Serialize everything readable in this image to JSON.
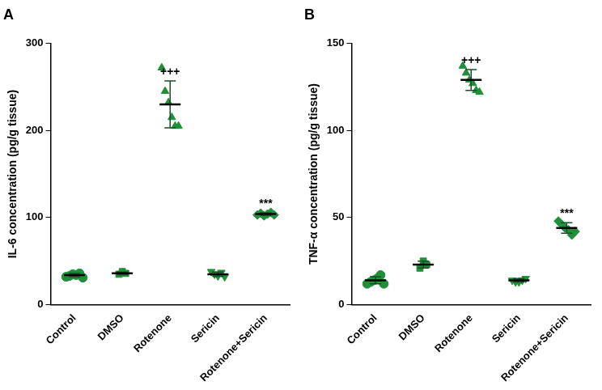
{
  "chart_data": [
    {
      "type": "scatter",
      "title": "A",
      "y_label": "IL-6 concentration (pg/g tissue)",
      "categories": [
        "Control",
        "DMSO",
        "Rotenone",
        "Sericin",
        "Rotenone+Sericin"
      ],
      "values": [
        [
          32,
          33,
          35,
          34,
          36,
          31
        ],
        [
          35,
          38,
          36
        ],
        [
          272,
          245,
          232,
          215,
          205,
          205
        ],
        [
          38,
          35,
          33,
          37,
          32
        ],
        [
          103,
          105,
          102,
          104,
          106,
          103
        ]
      ],
      "mean": [
        34,
        36,
        230,
        35,
        104
      ],
      "error": [
        2,
        1.5,
        27,
        2.5,
        1.5
      ],
      "marker": [
        "circle",
        "square",
        "triangle",
        "triangle-down",
        "diamond"
      ],
      "color": "#1f8f3a",
      "annotations": [
        {
          "category": "Rotenone",
          "text": "+++"
        },
        {
          "category": "Rotenone+Sericin",
          "text": "***"
        }
      ],
      "ylim": [
        0,
        300
      ],
      "yticks": [
        0,
        100,
        200,
        300
      ],
      "grid": false
    },
    {
      "type": "scatter",
      "title": "B",
      "y_label": "TNF-α concentration (pg/g tissue)",
      "categories": [
        "Control",
        "DMSO",
        "Rotenone",
        "Sericin",
        "Rotenone+Sericin"
      ],
      "values": [
        [
          12,
          13,
          14,
          15,
          17,
          12
        ],
        [
          21,
          25,
          23
        ],
        [
          137,
          133,
          129,
          127,
          123,
          122
        ],
        [
          14,
          13,
          13,
          14,
          15
        ],
        [
          48,
          46,
          44,
          43,
          40,
          42
        ]
      ],
      "mean": [
        14,
        23,
        129,
        14,
        44
      ],
      "error": [
        2,
        2,
        6,
        1,
        3
      ],
      "marker": [
        "circle",
        "square",
        "triangle",
        "triangle-down",
        "diamond"
      ],
      "color": "#1f8f3a",
      "annotations": [
        {
          "category": "Rotenone",
          "text": "+++"
        },
        {
          "category": "Rotenone+Sericin",
          "text": "***"
        }
      ],
      "ylim": [
        0,
        150
      ],
      "yticks": [
        0,
        50,
        100,
        150
      ],
      "grid": false
    }
  ]
}
